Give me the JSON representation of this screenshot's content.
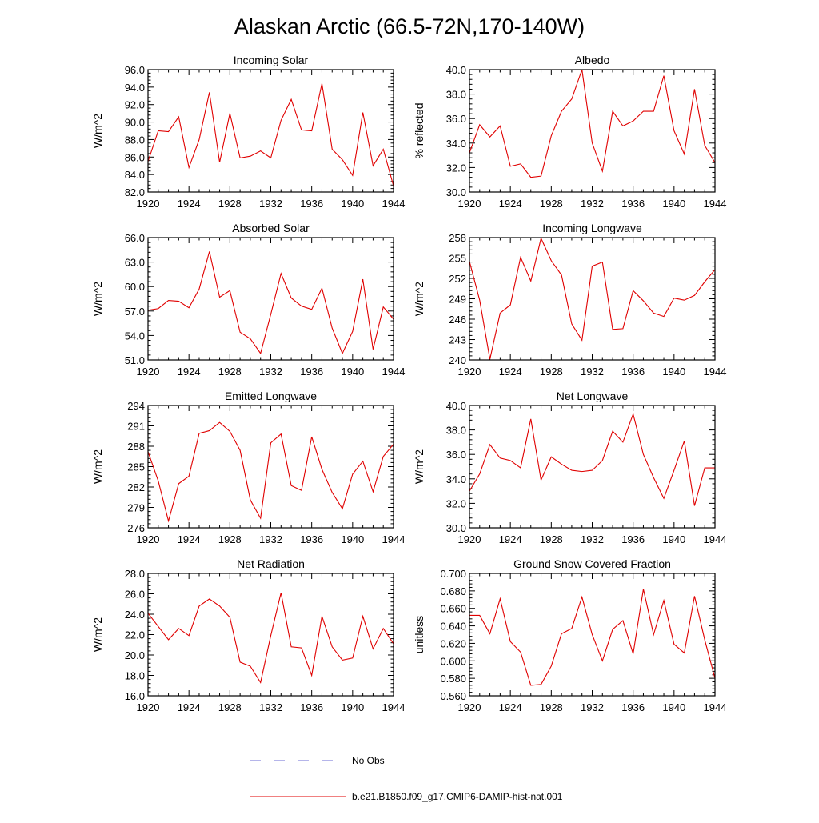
{
  "figure": {
    "title": "Alaskan Arctic (66.5-72N,170-140W)"
  },
  "legend": {
    "entries": [
      {
        "label": "No Obs",
        "color": "#6b6bd6",
        "style": "dashed"
      },
      {
        "label": "b.e21.B1850.f09_g17.CMIP6-DAMIP-hist-nat.001",
        "color": "#e00000",
        "style": "solid"
      }
    ]
  },
  "chart_data": [
    {
      "type": "line",
      "title": "Incoming Solar",
      "ylabel": "W/m^2",
      "xlabel": "",
      "xlim": [
        1920,
        1944
      ],
      "ylim": [
        82,
        96
      ],
      "xticks": [
        1920,
        1924,
        1928,
        1932,
        1936,
        1940,
        1944
      ],
      "yticks": [
        82,
        84,
        86,
        88,
        90,
        92,
        94,
        96
      ],
      "ytick_labels": [
        "82.0",
        "84.0",
        "86.0",
        "88.0",
        "90.0",
        "92.0",
        "94.0",
        "96.0"
      ],
      "series": [
        {
          "name": "b.e21.B1850.f09_g17.CMIP6-DAMIP-hist-nat.001",
          "color": "#e00000",
          "x": [
            1920,
            1921,
            1922,
            1923,
            1924,
            1925,
            1926,
            1927,
            1928,
            1929,
            1930,
            1931,
            1932,
            1933,
            1934,
            1935,
            1936,
            1937,
            1938,
            1939,
            1940,
            1941,
            1942,
            1943,
            1944
          ],
          "values": [
            85.5,
            89.0,
            88.9,
            90.6,
            84.8,
            88.0,
            93.4,
            85.4,
            91.0,
            85.9,
            86.1,
            86.7,
            85.9,
            90.2,
            92.6,
            89.1,
            89.0,
            94.4,
            86.9,
            85.7,
            83.9,
            91.1,
            85.0,
            86.9,
            82.7
          ]
        }
      ]
    },
    {
      "type": "line",
      "title": "Albedo",
      "ylabel": "% reflected",
      "xlabel": "",
      "xlim": [
        1920,
        1944
      ],
      "ylim": [
        30,
        40
      ],
      "xticks": [
        1920,
        1924,
        1928,
        1932,
        1936,
        1940,
        1944
      ],
      "yticks": [
        30,
        32,
        34,
        36,
        38,
        40
      ],
      "ytick_labels": [
        "30.0",
        "32.0",
        "34.0",
        "36.0",
        "38.0",
        "40.0"
      ],
      "series": [
        {
          "name": "b.e21.B1850.f09_g17.CMIP6-DAMIP-hist-nat.001",
          "color": "#e00000",
          "x": [
            1920,
            1921,
            1922,
            1923,
            1924,
            1925,
            1926,
            1927,
            1928,
            1929,
            1930,
            1931,
            1932,
            1933,
            1934,
            1935,
            1936,
            1937,
            1938,
            1939,
            1940,
            1941,
            1942,
            1943,
            1944
          ],
          "values": [
            33.2,
            35.5,
            34.5,
            35.4,
            32.1,
            32.3,
            31.2,
            31.3,
            34.6,
            36.6,
            37.6,
            40.0,
            34.0,
            31.7,
            36.6,
            35.4,
            35.8,
            36.6,
            36.6,
            39.5,
            35.0,
            33.1,
            38.4,
            33.8,
            32.4
          ]
        }
      ]
    },
    {
      "type": "line",
      "title": "Absorbed Solar",
      "ylabel": "W/m^2",
      "xlabel": "",
      "xlim": [
        1920,
        1944
      ],
      "ylim": [
        51,
        66
      ],
      "xticks": [
        1920,
        1924,
        1928,
        1932,
        1936,
        1940,
        1944
      ],
      "yticks": [
        51,
        54,
        57,
        60,
        63,
        66
      ],
      "ytick_labels": [
        "51.0",
        "54.0",
        "57.0",
        "60.0",
        "63.0",
        "66.0"
      ],
      "series": [
        {
          "name": "b.e21.B1850.f09_g17.CMIP6-DAMIP-hist-nat.001",
          "color": "#e00000",
          "x": [
            1920,
            1921,
            1922,
            1923,
            1924,
            1925,
            1926,
            1927,
            1928,
            1929,
            1930,
            1931,
            1932,
            1933,
            1934,
            1935,
            1936,
            1937,
            1938,
            1939,
            1940,
            1941,
            1942,
            1943,
            1944
          ],
          "values": [
            57.1,
            57.3,
            58.3,
            58.2,
            57.4,
            59.7,
            64.3,
            58.7,
            59.5,
            54.4,
            53.6,
            51.8,
            56.6,
            61.6,
            58.6,
            57.6,
            57.2,
            59.8,
            54.9,
            51.8,
            54.5,
            60.9,
            52.3,
            57.5,
            56.0
          ]
        }
      ]
    },
    {
      "type": "line",
      "title": "Incoming Longwave",
      "ylabel": "W/m^2",
      "xlabel": "",
      "xlim": [
        1920,
        1944
      ],
      "ylim": [
        240,
        258
      ],
      "xticks": [
        1920,
        1924,
        1928,
        1932,
        1936,
        1940,
        1944
      ],
      "yticks": [
        240,
        243,
        246,
        249,
        252,
        255,
        258
      ],
      "ytick_labels": [
        "240",
        "243",
        "246",
        "249",
        "252",
        "255",
        "258"
      ],
      "series": [
        {
          "name": "b.e21.B1850.f09_g17.CMIP6-DAMIP-hist-nat.001",
          "color": "#e00000",
          "x": [
            1920,
            1921,
            1922,
            1923,
            1924,
            1925,
            1926,
            1927,
            1928,
            1929,
            1930,
            1931,
            1932,
            1933,
            1934,
            1935,
            1936,
            1937,
            1938,
            1939,
            1940,
            1941,
            1942,
            1943,
            1944
          ],
          "values": [
            254.5,
            248.8,
            240.1,
            246.9,
            248.1,
            255.1,
            251.6,
            257.9,
            254.6,
            252.5,
            245.3,
            242.9,
            253.8,
            254.4,
            244.5,
            244.6,
            250.2,
            248.7,
            246.9,
            246.4,
            249.1,
            248.8,
            249.5,
            251.5,
            253.3
          ]
        }
      ]
    },
    {
      "type": "line",
      "title": "Emitted Longwave",
      "ylabel": "W/m^2",
      "xlabel": "",
      "xlim": [
        1920,
        1944
      ],
      "ylim": [
        276,
        294
      ],
      "xticks": [
        1920,
        1924,
        1928,
        1932,
        1936,
        1940,
        1944
      ],
      "yticks": [
        276,
        279,
        282,
        285,
        288,
        291,
        294
      ],
      "ytick_labels": [
        "276",
        "279",
        "282",
        "285",
        "288",
        "291",
        "294"
      ],
      "series": [
        {
          "name": "b.e21.B1850.f09_g17.CMIP6-DAMIP-hist-nat.001",
          "color": "#e00000",
          "x": [
            1920,
            1921,
            1922,
            1923,
            1924,
            1925,
            1926,
            1927,
            1928,
            1929,
            1930,
            1931,
            1932,
            1933,
            1934,
            1935,
            1936,
            1937,
            1938,
            1939,
            1940,
            1941,
            1942,
            1943,
            1944
          ],
          "values": [
            287.2,
            282.9,
            277.0,
            282.5,
            283.6,
            289.9,
            290.3,
            291.5,
            290.2,
            287.4,
            280.1,
            277.4,
            288.5,
            289.8,
            282.2,
            281.5,
            289.4,
            284.6,
            281.2,
            278.8,
            283.9,
            285.8,
            281.3,
            286.5,
            288.3
          ]
        }
      ]
    },
    {
      "type": "line",
      "title": "Net Longwave",
      "ylabel": "W/m^2",
      "xlabel": "",
      "xlim": [
        1920,
        1944
      ],
      "ylim": [
        30,
        40
      ],
      "xticks": [
        1920,
        1924,
        1928,
        1932,
        1936,
        1940,
        1944
      ],
      "yticks": [
        30,
        32,
        34,
        36,
        38,
        40
      ],
      "ytick_labels": [
        "30.0",
        "32.0",
        "34.0",
        "36.0",
        "38.0",
        "40.0"
      ],
      "series": [
        {
          "name": "b.e21.B1850.f09_g17.CMIP6-DAMIP-hist-nat.001",
          "color": "#e00000",
          "x": [
            1920,
            1921,
            1922,
            1923,
            1924,
            1925,
            1926,
            1927,
            1928,
            1929,
            1930,
            1931,
            1932,
            1933,
            1934,
            1935,
            1936,
            1937,
            1938,
            1939,
            1940,
            1941,
            1942,
            1943,
            1944
          ],
          "values": [
            33.0,
            34.4,
            36.8,
            35.7,
            35.5,
            34.9,
            38.9,
            33.9,
            35.8,
            35.2,
            34.7,
            34.6,
            34.7,
            35.5,
            37.9,
            37.0,
            39.3,
            36.0,
            34.1,
            32.4,
            34.7,
            37.1,
            31.8,
            34.9,
            34.9
          ]
        }
      ]
    },
    {
      "type": "line",
      "title": "Net Radiation",
      "ylabel": "W/m^2",
      "xlabel": "",
      "xlim": [
        1920,
        1944
      ],
      "ylim": [
        16,
        28
      ],
      "xticks": [
        1920,
        1924,
        1928,
        1932,
        1936,
        1940,
        1944
      ],
      "yticks": [
        16,
        18,
        20,
        22,
        24,
        26,
        28
      ],
      "ytick_labels": [
        "16.0",
        "18.0",
        "20.0",
        "22.0",
        "24.0",
        "26.0",
        "28.0"
      ],
      "series": [
        {
          "name": "b.e21.B1850.f09_g17.CMIP6-DAMIP-hist-nat.001",
          "color": "#e00000",
          "x": [
            1920,
            1921,
            1922,
            1923,
            1924,
            1925,
            1926,
            1927,
            1928,
            1929,
            1930,
            1931,
            1932,
            1933,
            1934,
            1935,
            1936,
            1937,
            1938,
            1939,
            1940,
            1941,
            1942,
            1943,
            1944
          ],
          "values": [
            24.1,
            22.8,
            21.5,
            22.6,
            21.9,
            24.8,
            25.5,
            24.8,
            23.7,
            19.3,
            18.9,
            17.3,
            21.9,
            26.1,
            20.8,
            20.7,
            18.0,
            23.8,
            20.8,
            19.5,
            19.7,
            23.8,
            20.6,
            22.6,
            21.1
          ]
        }
      ]
    },
    {
      "type": "line",
      "title": "Ground Snow Covered Fraction",
      "ylabel": "unitless",
      "xlabel": "",
      "xlim": [
        1920,
        1944
      ],
      "ylim": [
        0.56,
        0.7
      ],
      "xticks": [
        1920,
        1924,
        1928,
        1932,
        1936,
        1940,
        1944
      ],
      "yticks": [
        0.56,
        0.58,
        0.6,
        0.62,
        0.64,
        0.66,
        0.68,
        0.7
      ],
      "ytick_labels": [
        "0.560",
        "0.580",
        "0.600",
        "0.620",
        "0.640",
        "0.660",
        "0.680",
        "0.700"
      ],
      "series": [
        {
          "name": "b.e21.B1850.f09_g17.CMIP6-DAMIP-hist-nat.001",
          "color": "#e00000",
          "x": [
            1920,
            1921,
            1922,
            1923,
            1924,
            1925,
            1926,
            1927,
            1928,
            1929,
            1930,
            1931,
            1932,
            1933,
            1934,
            1935,
            1936,
            1937,
            1938,
            1939,
            1940,
            1941,
            1942,
            1943,
            1944
          ],
          "values": [
            0.652,
            0.652,
            0.631,
            0.671,
            0.622,
            0.61,
            0.572,
            0.573,
            0.594,
            0.631,
            0.637,
            0.673,
            0.63,
            0.6,
            0.636,
            0.646,
            0.608,
            0.682,
            0.63,
            0.669,
            0.619,
            0.609,
            0.674,
            0.624,
            0.58
          ]
        }
      ]
    }
  ]
}
